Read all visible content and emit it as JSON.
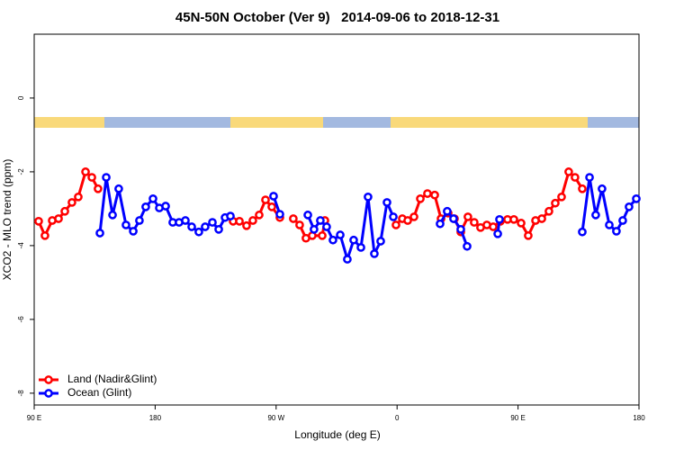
{
  "chart_data": {
    "type": "line",
    "title": "45N-50N October (Ver 9)   2014-09-06 to 2018-12-31",
    "x_label": "Longitude (deg E)",
    "y_label": "XCO2 - MLO trend (ppm)",
    "xlim": [
      90,
      540
    ],
    "xticks": [
      {
        "value": 90,
        "label": "90 E"
      },
      {
        "value": 180,
        "label": "180"
      },
      {
        "value": 270,
        "label": "90 W"
      },
      {
        "value": 360,
        "label": "0"
      },
      {
        "value": 450,
        "label": "90 E"
      },
      {
        "value": 540,
        "label": "180"
      }
    ],
    "ylim": [
      -8.32,
      1.73
    ],
    "yticks": [
      -8,
      -6,
      -4,
      -2,
      0
    ],
    "legend": "bottom-left",
    "series": [
      {
        "name": "Land (Nadir&Glint)",
        "color": "#ff0000",
        "x": [
          93.3,
          98.0,
          103.4,
          108.1,
          112.8,
          118.1,
          122.8,
          128.2,
          132.9,
          137.5,
          null,
          238.0,
          242.7,
          248.0,
          252.7,
          257.4,
          262.1,
          266.8,
          272.8,
          null,
          282.8,
          287.5,
          292.2,
          296.9,
          304.3,
          306.3,
          null,
          359.2,
          363.9,
          367.9,
          372.6,
          377.3,
          382.6,
          388.0,
          392.7,
          398.0,
          402.7,
          407.4,
          412.7,
          417.4,
          422.1,
          426.8,
          431.5,
          436.9,
          442.2,
          446.9,
          452.3,
          457.6,
          463.0,
          467.7,
          473.0,
          477.7,
          482.4,
          487.7,
          492.4,
          497.8
        ],
        "values": [
          -3.34,
          -3.73,
          -3.32,
          -3.27,
          -3.07,
          -2.83,
          -2.68,
          -2.0,
          -2.15,
          -2.46,
          null,
          -3.34,
          -3.34,
          -3.46,
          -3.32,
          -3.17,
          -2.76,
          -2.95,
          -3.24,
          null,
          -3.27,
          -3.44,
          -3.8,
          -3.73,
          -3.73,
          -3.32,
          null,
          -3.44,
          -3.27,
          -3.32,
          -3.22,
          -2.73,
          -2.59,
          -2.63,
          -3.27,
          -3.12,
          -3.27,
          -3.63,
          -3.22,
          -3.37,
          -3.51,
          -3.44,
          -3.49,
          -3.34,
          -3.29,
          -3.29,
          -3.39,
          -3.73,
          -3.32,
          -3.27,
          -3.07,
          -2.85,
          -2.68,
          -2.0,
          -2.15,
          -2.46
        ]
      },
      {
        "name": "Ocean (Glint)",
        "color": "#0000ff",
        "x": [
          138.9,
          143.6,
          148.3,
          152.9,
          158.3,
          163.7,
          168.3,
          173.0,
          178.4,
          183.1,
          187.8,
          193.1,
          197.8,
          202.5,
          207.2,
          212.5,
          217.2,
          222.6,
          227.3,
          232.0,
          236.0,
          null,
          268.1,
          272.8,
          null,
          293.6,
          298.2,
          302.9,
          307.6,
          312.3,
          317.7,
          323.0,
          327.7,
          333.1,
          338.4,
          343.1,
          347.8,
          352.5,
          357.2,
          null,
          392.0,
          397.3,
          402.0,
          407.4,
          412.1,
          null,
          434.9,
          436.2,
          null,
          497.8,
          503.2,
          507.8,
          512.5,
          517.9,
          523.2,
          527.9,
          532.6,
          538.0
        ],
        "values": [
          -3.66,
          -2.15,
          -3.17,
          -2.46,
          -3.44,
          -3.61,
          -3.32,
          -2.95,
          -2.73,
          -2.98,
          -2.93,
          -3.37,
          -3.37,
          -3.32,
          -3.49,
          -3.63,
          -3.49,
          -3.37,
          -3.56,
          -3.24,
          -3.2,
          null,
          -2.66,
          -3.15,
          null,
          -3.17,
          -3.56,
          -3.32,
          -3.49,
          -3.85,
          -3.71,
          -4.37,
          -3.85,
          -4.05,
          -2.68,
          -4.22,
          -3.88,
          -2.83,
          -3.22,
          null,
          -3.41,
          -3.07,
          -3.27,
          -3.56,
          -4.02,
          null,
          -3.68,
          -3.29,
          null,
          -3.63,
          -2.15,
          -3.17,
          -2.46,
          -3.44,
          -3.61,
          -3.32,
          -2.95,
          -2.73
        ]
      }
    ]
  }
}
